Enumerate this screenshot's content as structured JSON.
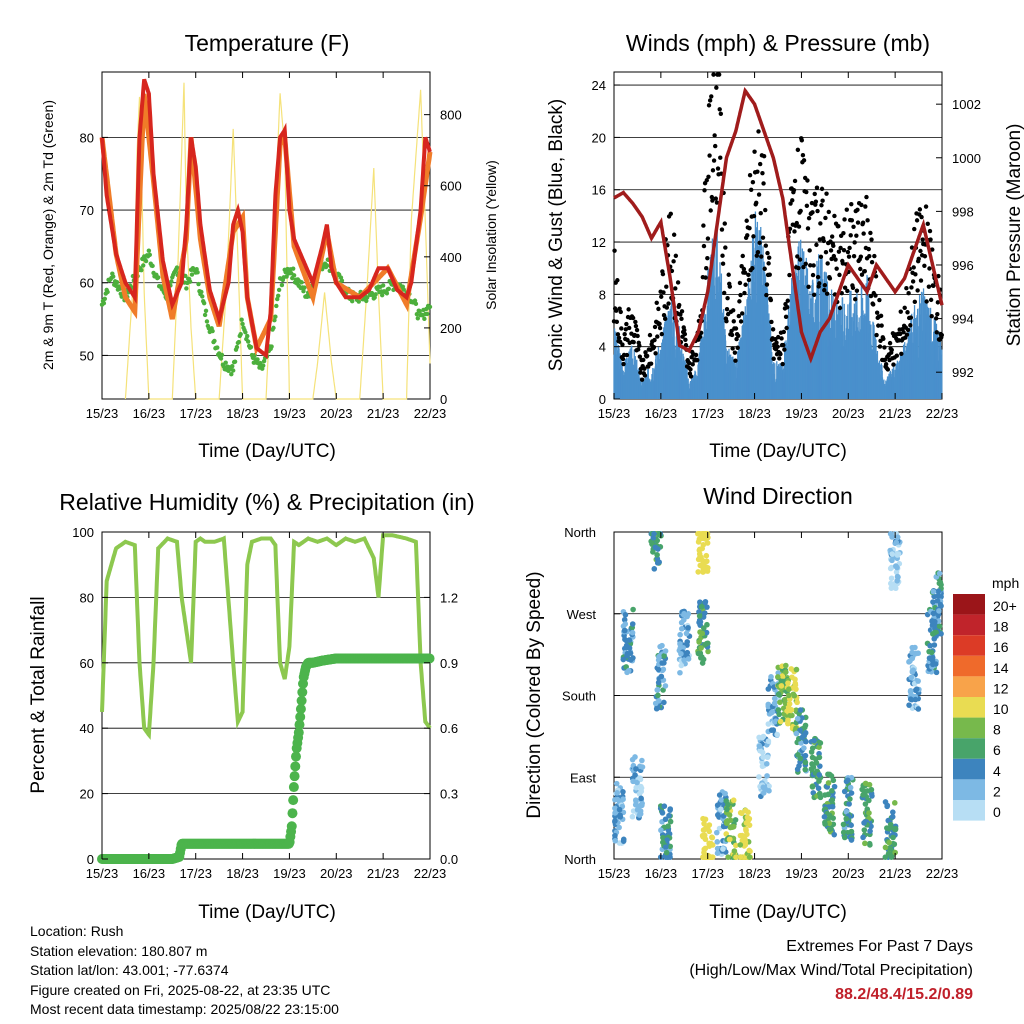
{
  "footer": {
    "location": "Location: Rush",
    "elevation": "Station elevation: 180.807 m",
    "latlon": "Station lat/lon: 43.001; -77.6374",
    "created": "Figure created on Fri, 2025-08-22, at 23:35 UTC",
    "recent": "Most recent data timestamp: 2025/08/22 23:15:00"
  },
  "extremes": {
    "title": "Extremes For Past 7 Days",
    "subtitle": "(High/Low/Max Wind/Total Precipitation)",
    "values": "88.2/48.4/15.2/0.89"
  },
  "chart_data": [
    {
      "type": "line",
      "title": "Temperature (F)",
      "xlabel": "Time (Day/UTC)",
      "ylabel": "2m & 9m T (Red, Orange) & 2m Td (Green)",
      "ylabel_right": "Solar Insolation (Yellow)",
      "x_ticks": [
        "15/23",
        "16/23",
        "17/23",
        "18/23",
        "19/23",
        "20/23",
        "21/23",
        "22/23"
      ],
      "ylim": [
        44,
        89
      ],
      "yticks": [
        50,
        60,
        70,
        80
      ],
      "y2lim": [
        0,
        920
      ],
      "y2ticks": [
        0,
        200,
        400,
        600,
        800
      ],
      "grid": true,
      "colors": {
        "t2m": "#d7261e",
        "t9m": "#f07c28",
        "td": "#4caf3c",
        "solar": "#f5e27a"
      },
      "series": [
        {
          "name": "2m T",
          "x": [
            0,
            0.1,
            0.3,
            0.5,
            0.7,
            0.8,
            0.9,
            1.0,
            1.1,
            1.3,
            1.5,
            1.7,
            1.8,
            1.9,
            2.0,
            2.1,
            2.3,
            2.5,
            2.7,
            2.8,
            2.9,
            3.0,
            3.1,
            3.3,
            3.5,
            3.6,
            3.7,
            3.8,
            3.9,
            4.0,
            4.1,
            4.3,
            4.5,
            4.7,
            4.8,
            4.9,
            5.0,
            5.2,
            5.5,
            5.7,
            5.9,
            6.1,
            6.3,
            6.5,
            6.6,
            6.8,
            6.9,
            7.0
          ],
          "values": [
            80,
            72,
            64,
            60,
            58,
            80,
            88,
            86,
            75,
            63,
            57,
            60,
            68,
            80,
            76,
            68,
            59,
            55,
            60,
            68,
            70,
            67,
            58,
            51,
            50,
            56,
            72,
            80,
            81,
            70,
            66,
            63,
            60,
            65,
            68,
            62,
            60,
            58,
            58,
            59,
            62,
            62,
            59,
            58,
            60,
            70,
            80,
            78
          ]
        },
        {
          "name": "9m T",
          "x": [
            0,
            0.3,
            0.5,
            0.7,
            0.9,
            1.1,
            1.3,
            1.5,
            1.8,
            1.9,
            2.1,
            2.3,
            2.5,
            2.8,
            3.0,
            3.1,
            3.3,
            3.6,
            3.8,
            3.9,
            4.1,
            4.5,
            4.8,
            5.0,
            5.5,
            6.1,
            6.5,
            6.8,
            7.0
          ],
          "values": [
            80,
            64,
            58,
            56,
            86,
            74,
            61,
            55,
            66,
            80,
            66,
            58,
            54,
            67,
            69,
            58,
            51,
            55,
            79,
            80,
            65,
            58,
            67,
            60,
            58,
            62,
            57,
            69,
            78
          ]
        },
        {
          "name": "2m Td",
          "x": [
            0,
            0.2,
            0.5,
            0.8,
            1.0,
            1.2,
            1.4,
            1.6,
            1.8,
            2.0,
            2.2,
            2.4,
            2.6,
            2.8,
            3.0,
            3.2,
            3.4,
            3.6,
            3.8,
            4.0,
            4.2,
            4.4,
            4.6,
            4.8,
            5.0,
            5.3,
            5.6,
            6.0,
            6.3,
            6.6,
            6.8,
            7.0
          ],
          "values": [
            57,
            61,
            58,
            62,
            64,
            60,
            58,
            62,
            60,
            62,
            56,
            52,
            49,
            48,
            55,
            50,
            48,
            51,
            60,
            62,
            60,
            58,
            62,
            63,
            61,
            58,
            58,
            59,
            60,
            58,
            55,
            57
          ]
        },
        {
          "name": "Solar",
          "x": [
            0.5,
            0.6,
            0.7,
            0.75,
            0.8,
            0.85,
            0.9,
            1.0,
            1.5,
            1.6,
            1.75,
            1.8,
            1.9,
            2.0,
            2.5,
            2.65,
            2.8,
            2.9,
            3.0,
            3.5,
            3.65,
            3.8,
            3.9,
            4.0,
            4.5,
            4.6,
            4.75,
            4.9,
            5.0,
            5.5,
            5.65,
            5.8,
            5.9,
            6.0,
            6.5,
            6.6,
            6.8,
            6.9,
            7.0
          ],
          "values": [
            0,
            200,
            400,
            700,
            850,
            600,
            300,
            0,
            0,
            300,
            890,
            500,
            200,
            0,
            0,
            300,
            760,
            400,
            0,
            0,
            400,
            860,
            700,
            0,
            0,
            100,
            300,
            100,
            0,
            0,
            300,
            650,
            300,
            0,
            0,
            500,
            870,
            500,
            100
          ]
        }
      ]
    },
    {
      "type": "scatter",
      "title": "Winds (mph) & Pressure (mb)",
      "xlabel": "Time (Day/UTC)",
      "ylabel": "Sonic Wind & Gust (Blue, Black)",
      "ylabel_right": "Station Pressure (Maroon)",
      "x_ticks": [
        "15/23",
        "16/23",
        "17/23",
        "18/23",
        "19/23",
        "20/23",
        "21/23",
        "22/23"
      ],
      "ylim": [
        0,
        25
      ],
      "yticks": [
        0,
        4,
        8,
        12,
        16,
        20,
        24
      ],
      "y2lim": [
        991,
        1003.2
      ],
      "y2ticks": [
        992,
        994,
        996,
        998,
        1000,
        1002
      ],
      "grid": true,
      "colors": {
        "wind": "#4a90cc",
        "gust": "#000000",
        "pressure": "#a01c1c"
      },
      "series": [
        {
          "name": "Sonic Wind",
          "x": [
            0,
            0.2,
            0.4,
            0.6,
            0.8,
            1.0,
            1.2,
            1.4,
            1.6,
            1.8,
            2.0,
            2.2,
            2.4,
            2.6,
            2.8,
            3.0,
            3.2,
            3.4,
            3.6,
            3.8,
            4.0,
            4.2,
            4.4,
            4.6,
            4.8,
            5.0,
            5.2,
            5.4,
            5.6,
            5.8,
            6.0,
            6.2,
            6.4,
            6.6,
            6.8,
            7.0
          ],
          "values": [
            4,
            2,
            3,
            1,
            2,
            3,
            6,
            4,
            1,
            2,
            7,
            10,
            3,
            2,
            5,
            10,
            9,
            2,
            2,
            7,
            9,
            6,
            8,
            6,
            5,
            6,
            6,
            7,
            3,
            1,
            2,
            3,
            5,
            6,
            5,
            3
          ]
        },
        {
          "name": "Gust",
          "x": [
            0,
            0.2,
            0.4,
            0.6,
            0.8,
            1.0,
            1.2,
            1.4,
            1.6,
            1.8,
            2.0,
            2.2,
            2.4,
            2.6,
            2.8,
            3.0,
            3.2,
            3.4,
            3.6,
            3.8,
            4.0,
            4.2,
            4.4,
            4.6,
            4.8,
            5.0,
            5.2,
            5.4,
            5.6,
            5.8,
            6.0,
            6.2,
            6.4,
            6.6,
            6.8,
            7.0
          ],
          "values": [
            9,
            4,
            6,
            2,
            4,
            7,
            11,
            7,
            2,
            4,
            16,
            22,
            8,
            4,
            10,
            16,
            14,
            4,
            4,
            13,
            15,
            11,
            13,
            11,
            10,
            12,
            11,
            12,
            7,
            3,
            4,
            6,
            10,
            12,
            9,
            6
          ]
        },
        {
          "name": "Pressure",
          "x": [
            0,
            0.2,
            0.4,
            0.6,
            0.8,
            1.0,
            1.2,
            1.4,
            1.6,
            1.8,
            2.0,
            2.2,
            2.4,
            2.6,
            2.8,
            3.0,
            3.2,
            3.4,
            3.6,
            3.8,
            4.0,
            4.2,
            4.4,
            4.6,
            4.8,
            5.0,
            5.2,
            5.4,
            5.6,
            5.8,
            6.0,
            6.2,
            6.4,
            6.6,
            6.8,
            7.0
          ],
          "values": [
            998.5,
            998.7,
            998.3,
            997.8,
            997.0,
            997.6,
            995.5,
            993.0,
            992.8,
            993.5,
            995.0,
            997.5,
            1000,
            1001,
            1002.5,
            1002,
            1001,
            1000,
            998.5,
            996,
            993.5,
            992.5,
            993.5,
            994,
            995,
            996,
            995.5,
            995,
            996,
            995.5,
            995,
            995.5,
            996.5,
            997.5,
            996,
            994.5
          ]
        }
      ]
    },
    {
      "type": "line",
      "title": "Relative Humidity (%) & Precipitation (in)",
      "xlabel": "Time (Day/UTC)",
      "ylabel": "Percent & Total Rainfall",
      "x_ticks": [
        "15/23",
        "16/23",
        "17/23",
        "18/23",
        "19/23",
        "20/23",
        "21/23",
        "22/23"
      ],
      "ylim": [
        0,
        100
      ],
      "yticks": [
        0,
        20,
        40,
        60,
        80,
        100
      ],
      "y2lim": [
        0,
        1.5
      ],
      "y2ticks": [
        0.0,
        0.3,
        0.6,
        0.9,
        1.2
      ],
      "grid": true,
      "colors": {
        "rh": "#8dc84f",
        "precip": "#4cb44c"
      },
      "series": [
        {
          "name": "RH",
          "x": [
            0,
            0.1,
            0.3,
            0.5,
            0.7,
            0.8,
            0.9,
            1.0,
            1.1,
            1.2,
            1.4,
            1.6,
            1.7,
            1.8,
            1.9,
            2.0,
            2.1,
            2.2,
            2.4,
            2.6,
            2.8,
            2.9,
            3.0,
            3.1,
            3.2,
            3.4,
            3.6,
            3.7,
            3.8,
            3.9,
            4.0,
            4.1,
            4.2,
            4.4,
            4.6,
            4.8,
            5.0,
            5.2,
            5.4,
            5.6,
            5.8,
            5.9,
            6.0,
            6.2,
            6.5,
            6.7,
            6.8,
            6.9,
            7.0
          ],
          "values": [
            45,
            85,
            95,
            97,
            96,
            60,
            40,
            38,
            60,
            95,
            98,
            97,
            80,
            70,
            60,
            97,
            98,
            97,
            97,
            98,
            60,
            42,
            45,
            90,
            97,
            98,
            98,
            96,
            60,
            55,
            65,
            97,
            96,
            98,
            97,
            98,
            96,
            98,
            97,
            98,
            92,
            80,
            99,
            99,
            98,
            97,
            60,
            42,
            40
          ]
        },
        {
          "name": "Precipitation",
          "x": [
            0,
            0.5,
            1.0,
            1.5,
            1.65,
            1.7,
            2.0,
            3.0,
            4.0,
            4.05,
            4.1,
            4.15,
            4.2,
            4.25,
            4.3,
            4.35,
            4.4,
            4.5,
            4.7,
            5.0,
            5.5,
            6.0,
            6.5,
            7.0
          ],
          "values": [
            0,
            0,
            0,
            0,
            0.01,
            0.07,
            0.07,
            0.07,
            0.07,
            0.15,
            0.35,
            0.5,
            0.58,
            0.7,
            0.83,
            0.88,
            0.9,
            0.9,
            0.91,
            0.92,
            0.92,
            0.92,
            0.92,
            0.92
          ]
        }
      ]
    },
    {
      "type": "scatter",
      "title": "Wind Direction",
      "xlabel": "Time (Day/UTC)",
      "ylabel": "Direction (Colored By Speed)",
      "x_ticks": [
        "15/23",
        "16/23",
        "17/23",
        "18/23",
        "19/23",
        "20/23",
        "21/23",
        "22/23"
      ],
      "y_ticks": [
        "North",
        "East",
        "South",
        "West",
        "North"
      ],
      "ylim": [
        0,
        360
      ],
      "grid": true,
      "legend": {
        "title": "mph",
        "labels": [
          "20+",
          "18",
          "16",
          "14",
          "12",
          "10",
          "8",
          "6",
          "4",
          "2",
          "0"
        ],
        "colors": [
          "#9b1519",
          "#c0242b",
          "#dc3b26",
          "#ef6a2b",
          "#f8a34a",
          "#e9dc52",
          "#77b94c",
          "#48a46a",
          "#3d84be",
          "#7db9e4",
          "#b7def4"
        ],
        "placement": "right"
      },
      "clusters": [
        {
          "x": 0.1,
          "dir": 50,
          "speed": 3
        },
        {
          "x": 0.3,
          "dir": 240,
          "speed": 4
        },
        {
          "x": 0.5,
          "dir": 80,
          "speed": 2
        },
        {
          "x": 0.9,
          "dir": 350,
          "speed": 6
        },
        {
          "x": 1.0,
          "dir": 200,
          "speed": 4
        },
        {
          "x": 1.1,
          "dir": 30,
          "speed": 5
        },
        {
          "x": 1.5,
          "dir": 240,
          "speed": 3
        },
        {
          "x": 1.9,
          "dir": 250,
          "speed": 6
        },
        {
          "x": 1.9,
          "dir": 350,
          "speed": 12
        },
        {
          "x": 2.0,
          "dir": 10,
          "speed": 14
        },
        {
          "x": 2.3,
          "dir": 40,
          "speed": 3
        },
        {
          "x": 2.5,
          "dir": 30,
          "speed": 8
        },
        {
          "x": 2.8,
          "dir": 20,
          "speed": 10
        },
        {
          "x": 3.2,
          "dir": 100,
          "speed": 2
        },
        {
          "x": 3.4,
          "dir": 170,
          "speed": 3
        },
        {
          "x": 3.6,
          "dir": 180,
          "speed": 8
        },
        {
          "x": 3.8,
          "dir": 175,
          "speed": 10
        },
        {
          "x": 4.0,
          "dir": 130,
          "speed": 5
        },
        {
          "x": 4.3,
          "dir": 100,
          "speed": 6
        },
        {
          "x": 4.6,
          "dir": 60,
          "speed": 6
        },
        {
          "x": 5.0,
          "dir": 55,
          "speed": 5
        },
        {
          "x": 5.4,
          "dir": 50,
          "speed": 6
        },
        {
          "x": 5.9,
          "dir": 30,
          "speed": 6
        },
        {
          "x": 6.0,
          "dir": 330,
          "speed": 2
        },
        {
          "x": 6.4,
          "dir": 200,
          "speed": 3
        },
        {
          "x": 6.8,
          "dir": 240,
          "speed": 4
        },
        {
          "x": 6.9,
          "dir": 280,
          "speed": 5
        }
      ]
    }
  ]
}
